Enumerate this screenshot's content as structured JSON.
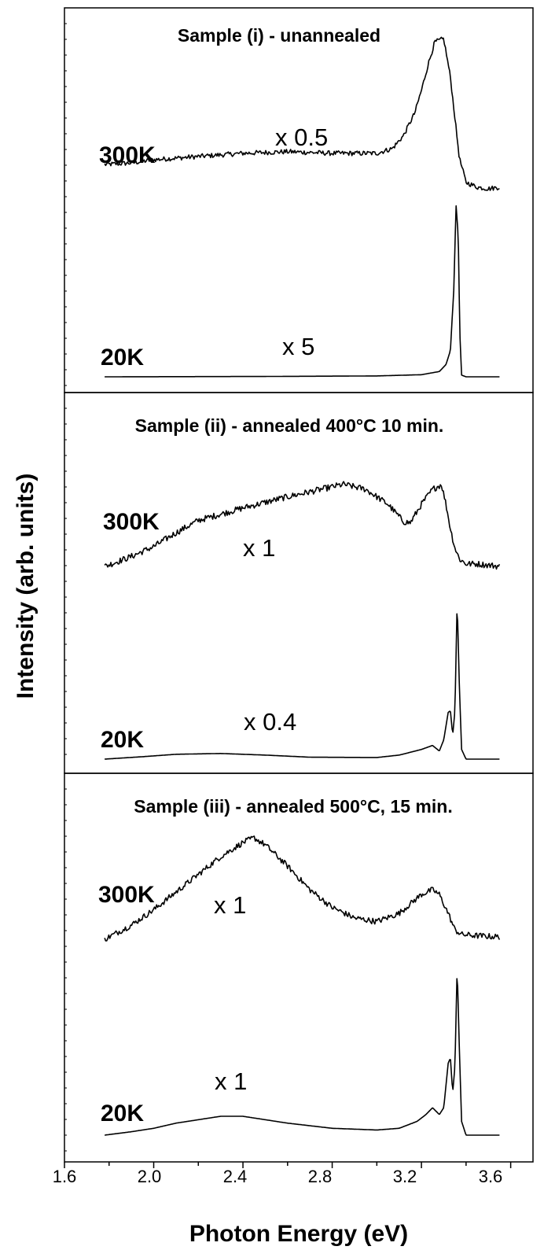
{
  "chart_data": {
    "type": "line",
    "xlabel": "Photon Energy (eV)",
    "ylabel": "Intensity (arb. units)",
    "xlim": [
      1.6,
      3.7
    ],
    "xticks": [
      "1.6",
      "2.0",
      "2.4",
      "2.8",
      "3.2",
      "3.6"
    ],
    "grid": false,
    "panels": [
      {
        "title": "Sample (i) - unannealed",
        "series": [
          {
            "name": "300K",
            "scale": "x 0.5",
            "x": [
              1.78,
              1.9,
              2.0,
              2.2,
              2.4,
              2.6,
              2.8,
              3.0,
              3.07,
              3.12,
              3.17,
              3.2,
              3.23,
              3.26,
              3.3,
              3.33,
              3.35,
              3.37,
              3.4,
              3.45,
              3.5,
              3.55
            ],
            "y": [
              0.16,
              0.17,
              0.19,
              0.21,
              0.23,
              0.24,
              0.23,
              0.23,
              0.26,
              0.34,
              0.48,
              0.62,
              0.78,
              0.92,
              0.94,
              0.7,
              0.45,
              0.2,
              0.05,
              0.02,
              0.01,
              0.02
            ],
            "noise": 0.015
          },
          {
            "name": "20K",
            "scale": "x 5",
            "x": [
              1.78,
              2.5,
              3.0,
              3.2,
              3.28,
              3.31,
              3.33,
              3.345,
              3.355,
              3.365,
              3.372,
              3.38,
              3.4,
              3.55
            ],
            "y": [
              0.0,
              0.002,
              0.005,
              0.012,
              0.03,
              0.07,
              0.15,
              0.5,
              0.98,
              0.8,
              0.25,
              0.01,
              0.0,
              0.0
            ],
            "noise": 0
          }
        ]
      },
      {
        "title": "Sample (ii) - annealed 400°C 10 min.",
        "series": [
          {
            "name": "300K",
            "scale": "x 1",
            "x": [
              1.78,
              1.9,
              2.0,
              2.1,
              2.2,
              2.4,
              2.6,
              2.85,
              2.95,
              3.05,
              3.12,
              3.15,
              3.2,
              3.25,
              3.29,
              3.31,
              3.33,
              3.35,
              3.37,
              3.4,
              3.45,
              3.55
            ],
            "y": [
              0.0,
              0.08,
              0.16,
              0.27,
              0.37,
              0.47,
              0.56,
              0.66,
              0.62,
              0.5,
              0.36,
              0.35,
              0.5,
              0.62,
              0.66,
              0.5,
              0.3,
              0.15,
              0.06,
              0.02,
              0.02,
              0.0
            ],
            "noise": 0.025
          },
          {
            "name": "20K",
            "scale": "x 0.4",
            "x": [
              1.78,
              1.95,
              2.1,
              2.3,
              2.5,
              2.7,
              3.0,
              3.1,
              3.2,
              3.25,
              3.28,
              3.3,
              3.32,
              3.33,
              3.34,
              3.35,
              3.36,
              3.37,
              3.38,
              3.4,
              3.55
            ],
            "y": [
              0.0,
              0.015,
              0.03,
              0.035,
              0.025,
              0.012,
              0.01,
              0.025,
              0.06,
              0.085,
              0.05,
              0.12,
              0.29,
              0.3,
              0.15,
              0.3,
              0.98,
              0.45,
              0.06,
              0.0,
              0.0
            ],
            "noise": 0
          }
        ]
      },
      {
        "title": "Sample (iii) - annealed 500°C, 15 min.",
        "series": [
          {
            "name": "300K",
            "scale": "x 1",
            "x": [
              1.78,
              1.9,
              2.0,
              2.1,
              2.2,
              2.3,
              2.4,
              2.45,
              2.5,
              2.6,
              2.7,
              2.8,
              2.9,
              3.0,
              3.1,
              3.15,
              3.2,
              3.25,
              3.28,
              3.32,
              3.35,
              3.38,
              3.45,
              3.55
            ],
            "y": [
              0.0,
              0.12,
              0.25,
              0.4,
              0.55,
              0.7,
              0.82,
              0.86,
              0.8,
              0.62,
              0.42,
              0.27,
              0.18,
              0.15,
              0.22,
              0.3,
              0.38,
              0.42,
              0.38,
              0.22,
              0.08,
              0.04,
              0.03,
              0.02
            ],
            "noise": 0.025
          },
          {
            "name": "20K",
            "scale": "x 1",
            "x": [
              1.78,
              1.9,
              2.0,
              2.1,
              2.2,
              2.3,
              2.4,
              2.5,
              2.6,
              2.8,
              3.0,
              3.1,
              3.18,
              3.22,
              3.25,
              3.28,
              3.3,
              3.32,
              3.33,
              3.34,
              3.35,
              3.36,
              3.37,
              3.38,
              3.4,
              3.55
            ],
            "y": [
              0.0,
              0.02,
              0.04,
              0.07,
              0.09,
              0.11,
              0.11,
              0.09,
              0.07,
              0.04,
              0.03,
              0.04,
              0.08,
              0.12,
              0.16,
              0.12,
              0.16,
              0.42,
              0.45,
              0.25,
              0.4,
              0.98,
              0.5,
              0.08,
              0.0,
              0.0
            ],
            "noise": 0
          }
        ]
      }
    ]
  }
}
